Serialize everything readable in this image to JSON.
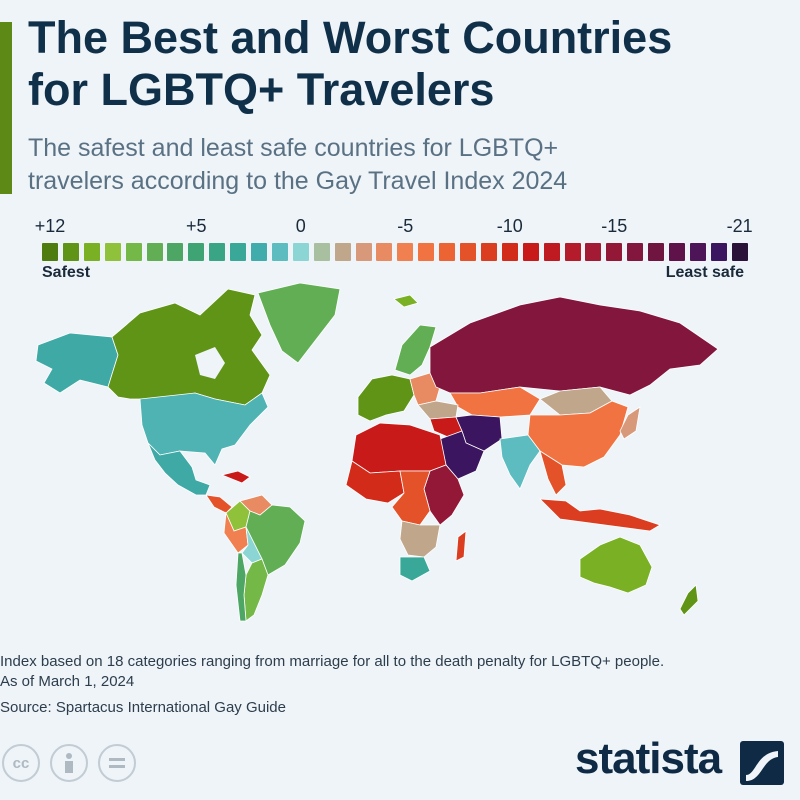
{
  "title": [
    "The Best and Worst Countries",
    "for LGBTQ+ Travelers"
  ],
  "subtitle": [
    "The safest and least safe countries for LGBTQ+",
    "travelers according to the Gay Travel Index 2024"
  ],
  "legend": {
    "ticks": [
      {
        "label": "+12",
        "index": 0
      },
      {
        "label": "+5",
        "index": 7
      },
      {
        "label": "0",
        "index": 12
      },
      {
        "label": "-5",
        "index": 17
      },
      {
        "label": "-10",
        "index": 22
      },
      {
        "label": "-15",
        "index": 27
      },
      {
        "label": "-21",
        "index": 33
      }
    ],
    "colors": [
      "#4e7c0f",
      "#5f9417",
      "#7ab024",
      "#8fc23a",
      "#74b848",
      "#62ae55",
      "#4ea664",
      "#3fa474",
      "#3aa585",
      "#3aa898",
      "#40acac",
      "#5cbcc0",
      "#8bd6d4",
      "#a8bfa0",
      "#c0a68a",
      "#d8987a",
      "#e88a62",
      "#f08050",
      "#f17341",
      "#ec6434",
      "#e35229",
      "#db3d20",
      "#d22b1a",
      "#c81a18",
      "#bf1a22",
      "#b41c2c",
      "#a31a34",
      "#931838",
      "#83163c",
      "#701440",
      "#5f124a",
      "#4d1458",
      "#3b1560",
      "#2a1238"
    ],
    "left_label": "Safest",
    "right_label": "Least safe"
  },
  "map": {
    "regions": [
      {
        "name": "Canada",
        "color": "#5f9417"
      },
      {
        "name": "Greenland",
        "color": "#62ae55"
      },
      {
        "name": "Alaska",
        "color": "#3fa9a6"
      },
      {
        "name": "United States",
        "color": "#4fb3b3"
      },
      {
        "name": "Mexico",
        "color": "#3fa9a6"
      },
      {
        "name": "Central America",
        "color": "#e35229"
      },
      {
        "name": "Caribbean",
        "color": "#c81a18"
      },
      {
        "name": "Colombia",
        "color": "#8fc23a"
      },
      {
        "name": "Venezuela",
        "color": "#e88a62"
      },
      {
        "name": "Brazil",
        "color": "#62ae55"
      },
      {
        "name": "Peru",
        "color": "#f08050"
      },
      {
        "name": "Bolivia",
        "color": "#8bd6d4"
      },
      {
        "name": "Argentina",
        "color": "#74b848"
      },
      {
        "name": "Chile",
        "color": "#4ea664"
      },
      {
        "name": "Iceland",
        "color": "#7ab024"
      },
      {
        "name": "Scandinavia",
        "color": "#62ae55"
      },
      {
        "name": "Western Europe",
        "color": "#5f9417"
      },
      {
        "name": "Eastern Europe",
        "color": "#e88a62"
      },
      {
        "name": "Russia",
        "color": "#83163c"
      },
      {
        "name": "Kazakhstan",
        "color": "#f17341"
      },
      {
        "name": "Mongolia",
        "color": "#c0a68a"
      },
      {
        "name": "China",
        "color": "#f17341"
      },
      {
        "name": "Japan",
        "color": "#d8987a"
      },
      {
        "name": "Turkey",
        "color": "#c0a68a"
      },
      {
        "name": "Middle East",
        "color": "#c81a18"
      },
      {
        "name": "Iran",
        "color": "#3b1560"
      },
      {
        "name": "Saudi Arabia",
        "color": "#3b1560"
      },
      {
        "name": "India",
        "color": "#5cbcc0"
      },
      {
        "name": "Southeast Asia",
        "color": "#e35229"
      },
      {
        "name": "Indonesia",
        "color": "#db3d20"
      },
      {
        "name": "North Africa",
        "color": "#c81a18"
      },
      {
        "name": "West Africa",
        "color": "#d22b1a"
      },
      {
        "name": "East Africa",
        "color": "#931838"
      },
      {
        "name": "Central Africa",
        "color": "#e35229"
      },
      {
        "name": "Southern Africa",
        "color": "#c0a68a"
      },
      {
        "name": "South Africa",
        "color": "#3aa898"
      },
      {
        "name": "Madagascar",
        "color": "#db3d20"
      },
      {
        "name": "Australia",
        "color": "#7ab024"
      },
      {
        "name": "New Zealand",
        "color": "#5f9417"
      }
    ]
  },
  "footnote": [
    "Index based on 18 categories ranging from marriage for all to the death penalty for LGBTQ+ people.",
    "As of March 1, 2024"
  ],
  "source": "Source: Spartacus International Gay Guide",
  "icons": [
    "creative-commons-icon",
    "attribution-icon",
    "no-derivatives-icon"
  ],
  "brand": "statista"
}
